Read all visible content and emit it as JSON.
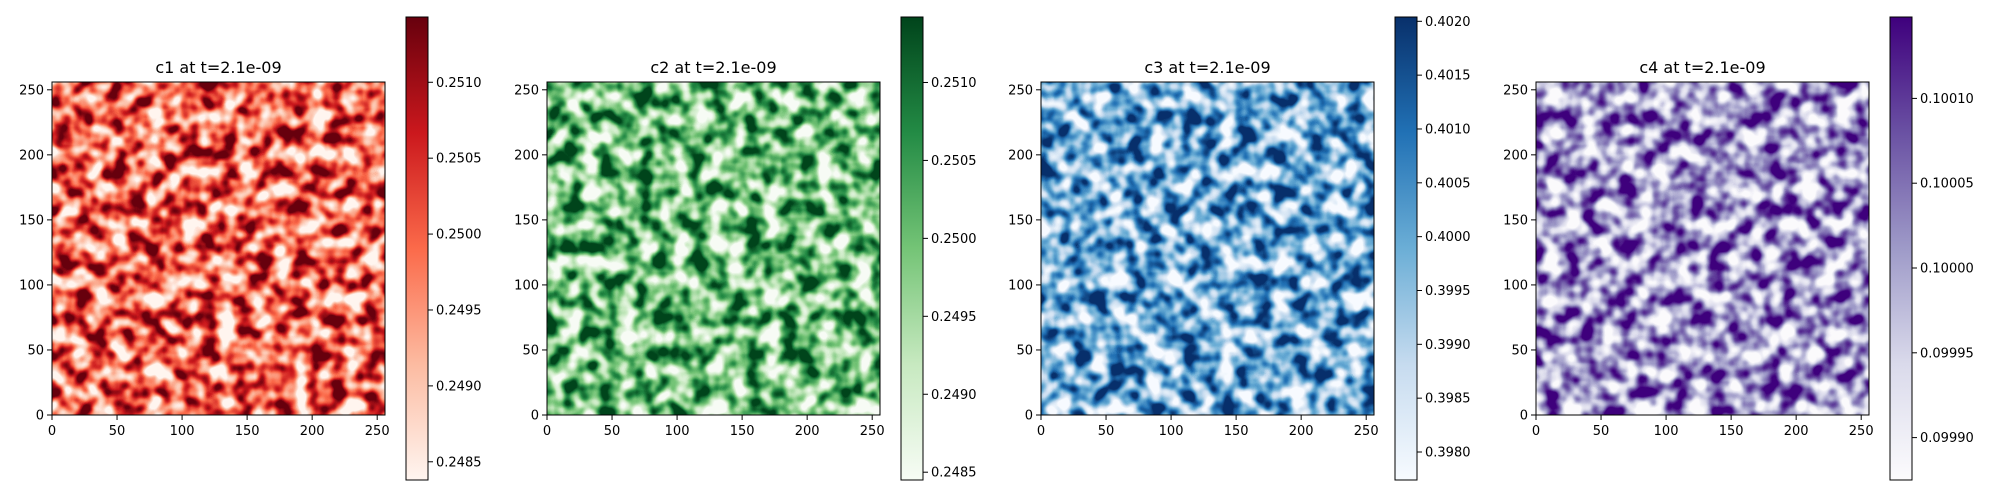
{
  "figure": {
    "background": "#ffffff"
  },
  "chart_data": [
    {
      "type": "heatmap",
      "title": "c1 at t=2.1e-09",
      "colormap": "Reds",
      "colors": [
        "#fff5f0",
        "#fcbba1",
        "#fb6a4a",
        "#cb181d",
        "#67000d"
      ],
      "field": "c1",
      "time": "2.1e-09",
      "grid_size": [
        256,
        256
      ],
      "x_ticks": [
        0,
        50,
        100,
        150,
        200,
        250
      ],
      "y_ticks": [
        0,
        50,
        100,
        150,
        200,
        250
      ],
      "xlim": [
        0,
        256
      ],
      "ylim": [
        0,
        256
      ],
      "colorbar": {
        "ticks": [
          "0.2485",
          "0.2490",
          "0.2495",
          "0.2500",
          "0.2505",
          "0.2510"
        ],
        "range": [
          0.24838,
          0.25143
        ]
      },
      "texture_seed": 11
    },
    {
      "type": "heatmap",
      "title": "c2 at t=2.1e-09",
      "colormap": "Greens",
      "colors": [
        "#f7fcf5",
        "#c7e9c0",
        "#74c476",
        "#238b45",
        "#00441b"
      ],
      "field": "c2",
      "time": "2.1e-09",
      "grid_size": [
        256,
        256
      ],
      "x_ticks": [
        0,
        50,
        100,
        150,
        200,
        250
      ],
      "y_ticks": [
        0,
        50,
        100,
        150,
        200,
        250
      ],
      "xlim": [
        0,
        256
      ],
      "ylim": [
        0,
        256
      ],
      "colorbar": {
        "ticks": [
          "0.2485",
          "0.2490",
          "0.2495",
          "0.2500",
          "0.2505",
          "0.2510"
        ],
        "range": [
          0.24845,
          0.25142
        ]
      },
      "texture_seed": 23
    },
    {
      "type": "heatmap",
      "title": "c3 at t=2.1e-09",
      "colormap": "Blues",
      "colors": [
        "#f7fbff",
        "#c6dbef",
        "#6baed6",
        "#2171b5",
        "#08306b"
      ],
      "field": "c3",
      "time": "2.1e-09",
      "grid_size": [
        256,
        256
      ],
      "x_ticks": [
        0,
        50,
        100,
        150,
        200,
        250
      ],
      "y_ticks": [
        0,
        50,
        100,
        150,
        200,
        250
      ],
      "xlim": [
        0,
        256
      ],
      "ylim": [
        0,
        256
      ],
      "colorbar": {
        "ticks": [
          "0.3980",
          "0.3985",
          "0.3990",
          "0.3995",
          "0.4000",
          "0.4005",
          "0.4010",
          "0.4015",
          "0.4020"
        ],
        "range": [
          0.39774,
          0.40204
        ]
      },
      "texture_seed": 37
    },
    {
      "type": "heatmap",
      "title": "c4 at t=2.1e-09",
      "colormap": "Purples",
      "colors": [
        "#fcfbfd",
        "#dadaeb",
        "#9e9ac8",
        "#6a51a3",
        "#3f007d"
      ],
      "field": "c4",
      "time": "2.1e-09",
      "grid_size": [
        256,
        256
      ],
      "x_ticks": [
        0,
        50,
        100,
        150,
        200,
        250
      ],
      "y_ticks": [
        0,
        50,
        100,
        150,
        200,
        250
      ],
      "xlim": [
        0,
        256
      ],
      "ylim": [
        0,
        256
      ],
      "colorbar": {
        "ticks": [
          "0.09990",
          "0.09995",
          "0.10000",
          "0.10005",
          "0.10010"
        ],
        "range": [
          0.099875,
          0.100148
        ]
      },
      "texture_seed": 53
    }
  ]
}
